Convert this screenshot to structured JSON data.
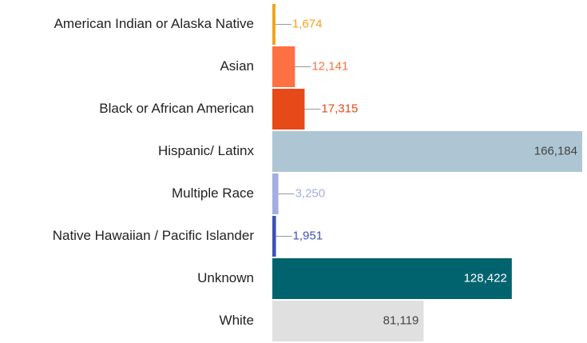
{
  "chart_data": {
    "type": "bar",
    "orientation": "horizontal",
    "categories": [
      "American Indian or Alaska Native",
      "Asian",
      "Black or African American",
      "Hispanic/ Latinx",
      "Multiple Race",
      "Native Hawaiian / Pacific Islander",
      "Unknown",
      "White"
    ],
    "values": [
      1674,
      12141,
      17315,
      166184,
      3250,
      1951,
      128422,
      81119
    ],
    "value_labels": [
      "1,674",
      "12,141",
      "17,315",
      "166,184",
      "3,250",
      "1,951",
      "128,422",
      "81,119"
    ],
    "colors": [
      "#f2a21e",
      "#ff7043",
      "#e64a19",
      "#aec6d3",
      "#a4aee0",
      "#3f51b5",
      "#00636e",
      "#e0e0e0"
    ]
  }
}
